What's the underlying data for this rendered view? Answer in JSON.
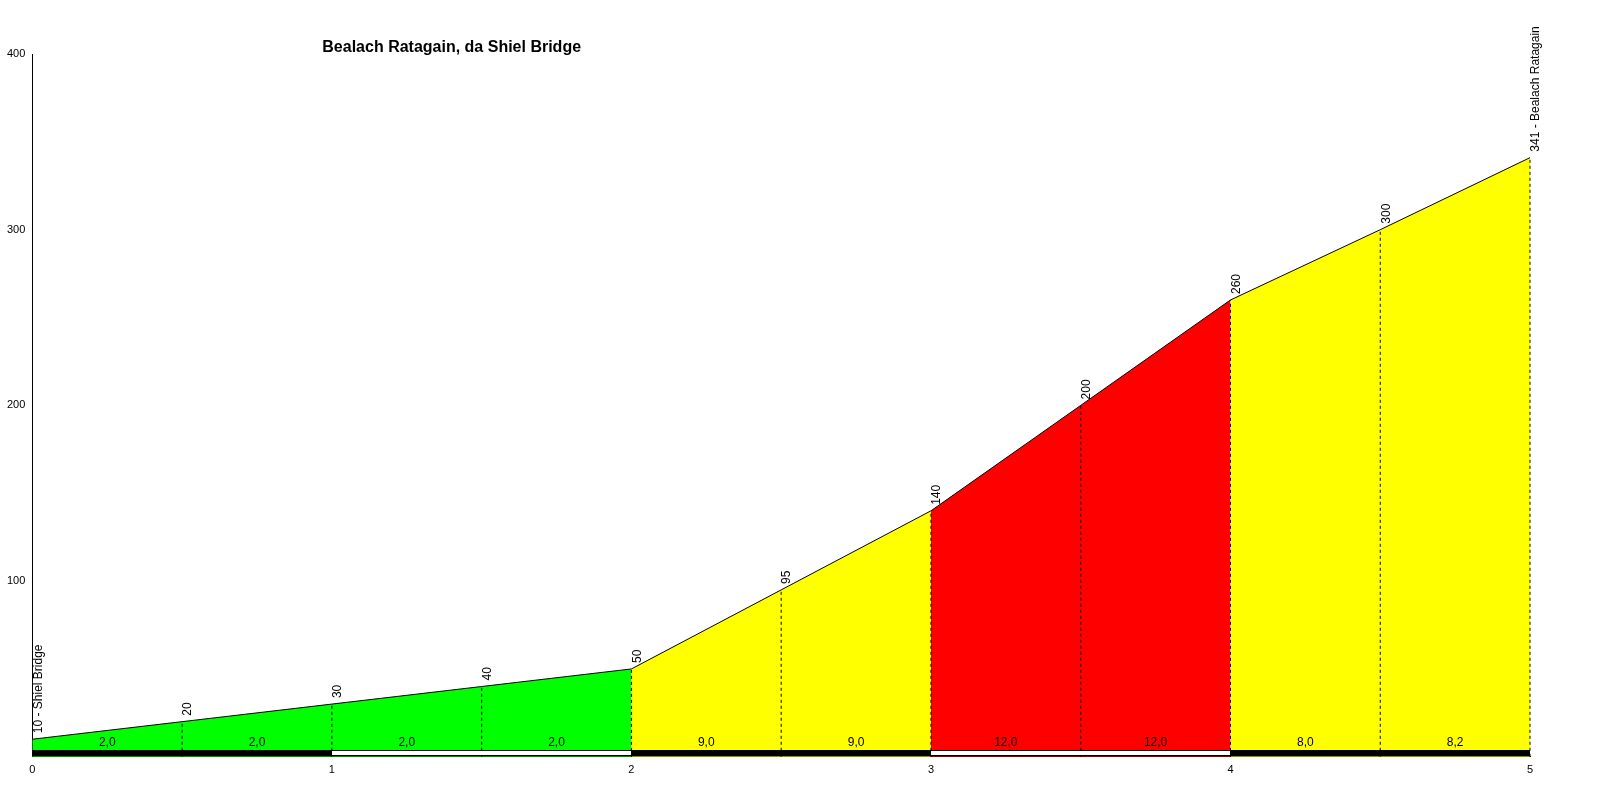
{
  "chart_data": {
    "type": "area",
    "title": "Bealach Ratagain, da Shiel Bridge",
    "xlim": [
      0,
      5
    ],
    "xticks": [
      0,
      1,
      2,
      3,
      4,
      5
    ],
    "ylim": [
      0,
      400
    ],
    "yticks": [
      100,
      200,
      300,
      400
    ],
    "grid": false,
    "legend": false,
    "marker": "none",
    "series": [
      {
        "color": "#00ff00",
        "x": [
          0,
          0.5,
          1,
          1.5,
          2
        ],
        "values": [
          10,
          20,
          30,
          40,
          50
        ],
        "value_labels": [
          "10 - Shiel Bridge",
          "20",
          "30",
          "40",
          "50"
        ]
      },
      {
        "color": "#ffff00",
        "x": [
          2,
          2.5,
          3
        ],
        "values": [
          50,
          95,
          140
        ],
        "value_labels": [
          null,
          "95",
          "140"
        ]
      },
      {
        "color": "#ff0000",
        "x": [
          3,
          3.5,
          4
        ],
        "values": [
          140,
          200,
          260
        ],
        "value_labels": [
          null,
          "200",
          "260"
        ]
      },
      {
        "color": "#ffff00",
        "x": [
          4,
          4.5,
          5
        ],
        "values": [
          260,
          300,
          341
        ],
        "value_labels": [
          null,
          "300",
          "341 - Bealach Ratagain"
        ]
      }
    ],
    "annotations": [
      "2,0",
      "2,0",
      "2,0",
      "2,0",
      "9,0",
      "9,0",
      "12,0",
      "12,0",
      "8,0",
      "8,2"
    ]
  }
}
